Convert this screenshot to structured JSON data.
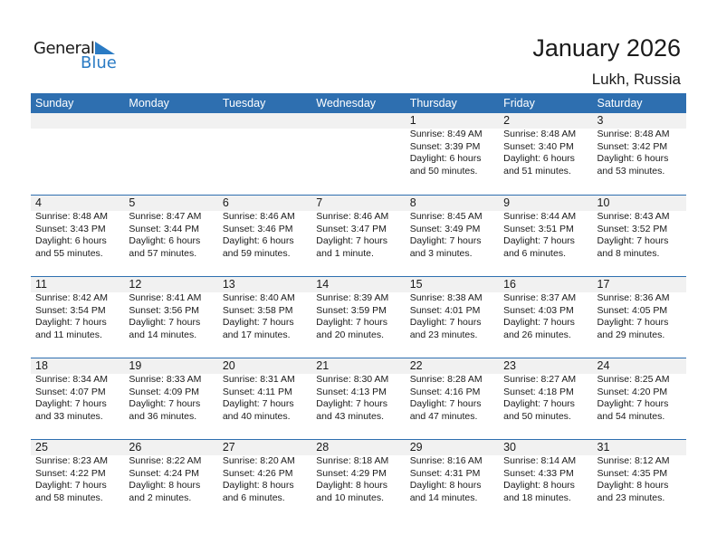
{
  "logo": {
    "general": "General",
    "blue": "Blue"
  },
  "title": "January 2026",
  "location": "Lukh, Russia",
  "colors": {
    "header": "#2e6fb0",
    "band": "#f1f1f1",
    "logo_blue": "#2a7bc4"
  },
  "days": [
    "Sunday",
    "Monday",
    "Tuesday",
    "Wednesday",
    "Thursday",
    "Friday",
    "Saturday"
  ],
  "weeks": [
    [
      null,
      null,
      null,
      null,
      {
        "day": "1",
        "sunrise": "Sunrise: 8:49 AM",
        "sunset": "Sunset: 3:39 PM",
        "daylight": "Daylight: 6 hours",
        "minutes": "and 50 minutes."
      },
      {
        "day": "2",
        "sunrise": "Sunrise: 8:48 AM",
        "sunset": "Sunset: 3:40 PM",
        "daylight": "Daylight: 6 hours",
        "minutes": "and 51 minutes."
      },
      {
        "day": "3",
        "sunrise": "Sunrise: 8:48 AM",
        "sunset": "Sunset: 3:42 PM",
        "daylight": "Daylight: 6 hours",
        "minutes": "and 53 minutes."
      }
    ],
    [
      {
        "day": "4",
        "sunrise": "Sunrise: 8:48 AM",
        "sunset": "Sunset: 3:43 PM",
        "daylight": "Daylight: 6 hours",
        "minutes": "and 55 minutes."
      },
      {
        "day": "5",
        "sunrise": "Sunrise: 8:47 AM",
        "sunset": "Sunset: 3:44 PM",
        "daylight": "Daylight: 6 hours",
        "minutes": "and 57 minutes."
      },
      {
        "day": "6",
        "sunrise": "Sunrise: 8:46 AM",
        "sunset": "Sunset: 3:46 PM",
        "daylight": "Daylight: 6 hours",
        "minutes": "and 59 minutes."
      },
      {
        "day": "7",
        "sunrise": "Sunrise: 8:46 AM",
        "sunset": "Sunset: 3:47 PM",
        "daylight": "Daylight: 7 hours",
        "minutes": "and 1 minute."
      },
      {
        "day": "8",
        "sunrise": "Sunrise: 8:45 AM",
        "sunset": "Sunset: 3:49 PM",
        "daylight": "Daylight: 7 hours",
        "minutes": "and 3 minutes."
      },
      {
        "day": "9",
        "sunrise": "Sunrise: 8:44 AM",
        "sunset": "Sunset: 3:51 PM",
        "daylight": "Daylight: 7 hours",
        "minutes": "and 6 minutes."
      },
      {
        "day": "10",
        "sunrise": "Sunrise: 8:43 AM",
        "sunset": "Sunset: 3:52 PM",
        "daylight": "Daylight: 7 hours",
        "minutes": "and 8 minutes."
      }
    ],
    [
      {
        "day": "11",
        "sunrise": "Sunrise: 8:42 AM",
        "sunset": "Sunset: 3:54 PM",
        "daylight": "Daylight: 7 hours",
        "minutes": "and 11 minutes."
      },
      {
        "day": "12",
        "sunrise": "Sunrise: 8:41 AM",
        "sunset": "Sunset: 3:56 PM",
        "daylight": "Daylight: 7 hours",
        "minutes": "and 14 minutes."
      },
      {
        "day": "13",
        "sunrise": "Sunrise: 8:40 AM",
        "sunset": "Sunset: 3:58 PM",
        "daylight": "Daylight: 7 hours",
        "minutes": "and 17 minutes."
      },
      {
        "day": "14",
        "sunrise": "Sunrise: 8:39 AM",
        "sunset": "Sunset: 3:59 PM",
        "daylight": "Daylight: 7 hours",
        "minutes": "and 20 minutes."
      },
      {
        "day": "15",
        "sunrise": "Sunrise: 8:38 AM",
        "sunset": "Sunset: 4:01 PM",
        "daylight": "Daylight: 7 hours",
        "minutes": "and 23 minutes."
      },
      {
        "day": "16",
        "sunrise": "Sunrise: 8:37 AM",
        "sunset": "Sunset: 4:03 PM",
        "daylight": "Daylight: 7 hours",
        "minutes": "and 26 minutes."
      },
      {
        "day": "17",
        "sunrise": "Sunrise: 8:36 AM",
        "sunset": "Sunset: 4:05 PM",
        "daylight": "Daylight: 7 hours",
        "minutes": "and 29 minutes."
      }
    ],
    [
      {
        "day": "18",
        "sunrise": "Sunrise: 8:34 AM",
        "sunset": "Sunset: 4:07 PM",
        "daylight": "Daylight: 7 hours",
        "minutes": "and 33 minutes."
      },
      {
        "day": "19",
        "sunrise": "Sunrise: 8:33 AM",
        "sunset": "Sunset: 4:09 PM",
        "daylight": "Daylight: 7 hours",
        "minutes": "and 36 minutes."
      },
      {
        "day": "20",
        "sunrise": "Sunrise: 8:31 AM",
        "sunset": "Sunset: 4:11 PM",
        "daylight": "Daylight: 7 hours",
        "minutes": "and 40 minutes."
      },
      {
        "day": "21",
        "sunrise": "Sunrise: 8:30 AM",
        "sunset": "Sunset: 4:13 PM",
        "daylight": "Daylight: 7 hours",
        "minutes": "and 43 minutes."
      },
      {
        "day": "22",
        "sunrise": "Sunrise: 8:28 AM",
        "sunset": "Sunset: 4:16 PM",
        "daylight": "Daylight: 7 hours",
        "minutes": "and 47 minutes."
      },
      {
        "day": "23",
        "sunrise": "Sunrise: 8:27 AM",
        "sunset": "Sunset: 4:18 PM",
        "daylight": "Daylight: 7 hours",
        "minutes": "and 50 minutes."
      },
      {
        "day": "24",
        "sunrise": "Sunrise: 8:25 AM",
        "sunset": "Sunset: 4:20 PM",
        "daylight": "Daylight: 7 hours",
        "minutes": "and 54 minutes."
      }
    ],
    [
      {
        "day": "25",
        "sunrise": "Sunrise: 8:23 AM",
        "sunset": "Sunset: 4:22 PM",
        "daylight": "Daylight: 7 hours",
        "minutes": "and 58 minutes."
      },
      {
        "day": "26",
        "sunrise": "Sunrise: 8:22 AM",
        "sunset": "Sunset: 4:24 PM",
        "daylight": "Daylight: 8 hours",
        "minutes": "and 2 minutes."
      },
      {
        "day": "27",
        "sunrise": "Sunrise: 8:20 AM",
        "sunset": "Sunset: 4:26 PM",
        "daylight": "Daylight: 8 hours",
        "minutes": "and 6 minutes."
      },
      {
        "day": "28",
        "sunrise": "Sunrise: 8:18 AM",
        "sunset": "Sunset: 4:29 PM",
        "daylight": "Daylight: 8 hours",
        "minutes": "and 10 minutes."
      },
      {
        "day": "29",
        "sunrise": "Sunrise: 8:16 AM",
        "sunset": "Sunset: 4:31 PM",
        "daylight": "Daylight: 8 hours",
        "minutes": "and 14 minutes."
      },
      {
        "day": "30",
        "sunrise": "Sunrise: 8:14 AM",
        "sunset": "Sunset: 4:33 PM",
        "daylight": "Daylight: 8 hours",
        "minutes": "and 18 minutes."
      },
      {
        "day": "31",
        "sunrise": "Sunrise: 8:12 AM",
        "sunset": "Sunset: 4:35 PM",
        "daylight": "Daylight: 8 hours",
        "minutes": "and 23 minutes."
      }
    ]
  ]
}
